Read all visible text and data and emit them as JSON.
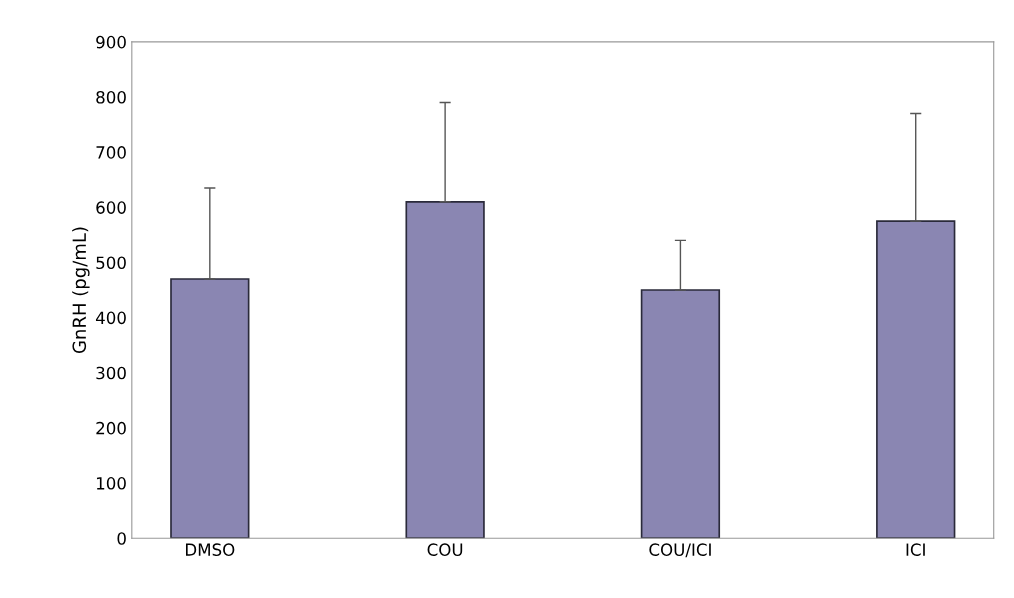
{
  "chart_data": {
    "type": "bar",
    "ylabel": "GnRH (pg/mL)",
    "categories": [
      "DMSO",
      "COU",
      "COU/ICI",
      "ICI"
    ],
    "values": [
      470,
      610,
      450,
      575
    ],
    "errors": [
      [
        470,
        635
      ],
      [
        610,
        790
      ],
      [
        450,
        540
      ],
      [
        575,
        770
      ]
    ],
    "color": "#8a86b2",
    "ylim": [
      0,
      900
    ],
    "yticks": [
      0,
      100,
      200,
      300,
      400,
      500,
      600,
      700,
      800,
      900
    ],
    "grid": false,
    "legend": false
  }
}
